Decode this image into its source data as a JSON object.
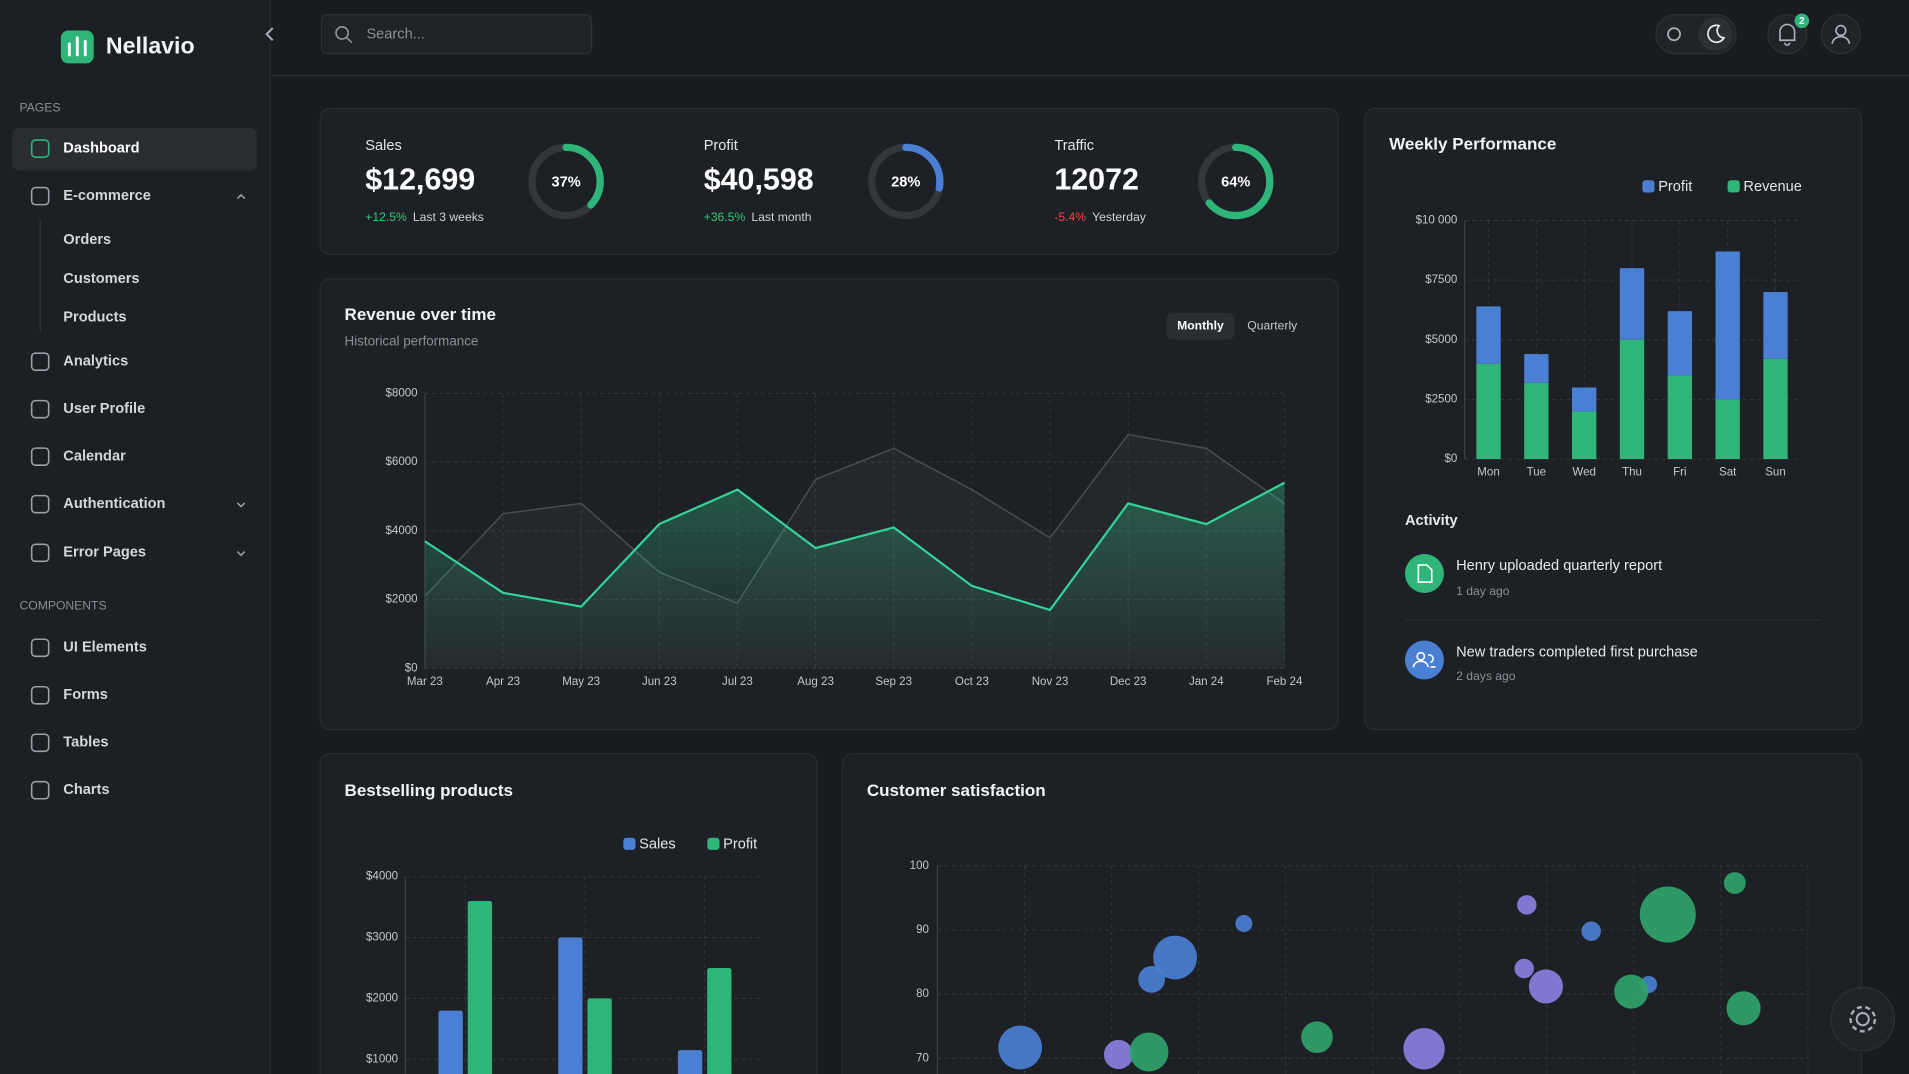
{
  "sidebar": {
    "brand": "Nellavio",
    "sections": [
      {
        "title": "PAGES",
        "items": [
          "Dashboard",
          "E-commerce",
          "Orders",
          "Customers",
          "Products",
          "Analytics",
          "User Profile",
          "Calendar",
          "Authentication",
          "Error Pages"
        ]
      },
      {
        "title": "COMPONENTS",
        "items": [
          "UI Elements",
          "Forms",
          "Tables",
          "Charts"
        ]
      }
    ]
  },
  "topbar": {
    "search_placeholder": "Search...",
    "notification_count": 2
  },
  "kpis": [
    {
      "label": "Sales",
      "value": "$12,699",
      "percent": 37,
      "percent_label": "37%",
      "color": "#2fb579",
      "change": "+12.5%",
      "change_color": "#34c77b",
      "period": "Last 3 weeks"
    },
    {
      "label": "Profit",
      "value": "$40,598",
      "percent": 28,
      "percent_label": "28%",
      "color": "#4a7fd4",
      "change": "+36.5%",
      "change_color": "#34c77b",
      "period": "Last month"
    },
    {
      "label": "Traffic",
      "value": "12072",
      "percent": 64,
      "percent_label": "64%",
      "color": "#2fb579",
      "change": "-5.4%",
      "change_color": "#f04848",
      "period": "Yesterday"
    }
  ],
  "chart_data": [
    {
      "type": "line",
      "title": "Revenue over time",
      "subtitle": "Historical performance",
      "tabs": [
        "Monthly",
        "Quarterly"
      ],
      "categories": [
        "Mar 23",
        "Apr 23",
        "May 23",
        "Jun 23",
        "Jul 23",
        "Aug 23",
        "Sep 23",
        "Oct 23",
        "Nov 23",
        "Dec 23",
        "Jan 24",
        "Feb 24"
      ],
      "series": [
        {
          "color": "#34d399",
          "values": [
            3700,
            2200,
            1800,
            4200,
            5200,
            3500,
            4100,
            2400,
            1700,
            4800,
            4200,
            5400
          ]
        },
        {
          "color": "#4a4e54",
          "values": [
            2100,
            4500,
            4800,
            2800,
            1900,
            5500,
            6400,
            5200,
            3800,
            6800,
            6400,
            4800
          ]
        }
      ],
      "ylim": [
        0,
        8000
      ],
      "yticks": [
        {
          "value": 0,
          "label": "$0"
        },
        {
          "value": 2000,
          "label": "$2000"
        },
        {
          "value": 4000,
          "label": "$4000"
        },
        {
          "value": 6000,
          "label": "$6000"
        },
        {
          "value": 8000,
          "label": "$8000"
        }
      ],
      "grid": true
    },
    {
      "type": "bar",
      "stacked": true,
      "title": "Weekly Performance",
      "categories": [
        "Mon",
        "Tue",
        "Wed",
        "Thu",
        "Fri",
        "Sat",
        "Sun"
      ],
      "series": [
        {
          "name": "Profit",
          "color": "#4a7fd4",
          "values": [
            2400,
            1200,
            1000,
            3000,
            2700,
            6200,
            2800
          ]
        },
        {
          "name": "Revenue",
          "color": "#2fb579",
          "values": [
            4000,
            3200,
            2000,
            5000,
            3500,
            2500,
            4200
          ]
        }
      ],
      "ylim": [
        0,
        10000
      ],
      "yticks": [
        {
          "value": 0,
          "label": "$0"
        },
        {
          "value": 2500,
          "label": "$2500"
        },
        {
          "value": 5000,
          "label": "$5000"
        },
        {
          "value": 7500,
          "label": "$7500"
        },
        {
          "value": 10000,
          "label": "$10 000"
        }
      ],
      "grid": true
    },
    {
      "type": "bar",
      "stacked": false,
      "title": "Bestselling products",
      "categories": [
        null,
        null,
        null
      ],
      "series": [
        {
          "name": "Sales",
          "color": "#4a7fd4",
          "values": [
            1800,
            3000,
            1150
          ]
        },
        {
          "name": "Profit",
          "color": "#2fb579",
          "values": [
            3600,
            2000,
            2500
          ]
        }
      ],
      "ylim": [
        0,
        4000
      ],
      "yticks": [
        {
          "value": 1000,
          "label": "$1000"
        },
        {
          "value": 2000,
          "label": "$2000"
        },
        {
          "value": 3000,
          "label": "$3000"
        },
        {
          "value": 4000,
          "label": "$4000"
        }
      ],
      "grid": true
    },
    {
      "type": "scatter",
      "title": "Customer satisfaction",
      "xlim": [
        0,
        100
      ],
      "ylim": [
        60,
        100
      ],
      "yticks": [
        70,
        80,
        90,
        100
      ],
      "grid": true,
      "series": [
        {
          "color": "#4a7fd4",
          "x": [
            9.5,
            24.6,
            27.3,
            35.2,
            75.1,
            81.7
          ],
          "values": [
            71.7,
            82.3,
            85.7,
            91,
            89.8,
            81.5
          ],
          "sizes": [
            18,
            11,
            18,
            7,
            8,
            7
          ]
        },
        {
          "color": "#8b7fe0",
          "x": [
            20.8,
            55.9,
            67.7,
            67.4,
            69.9
          ],
          "values": [
            70.6,
            71.5,
            93.9,
            84,
            81.2
          ],
          "sizes": [
            12,
            17,
            8,
            8,
            14
          ]
        },
        {
          "color": "#2fa36b",
          "x": [
            24.3,
            43.6,
            79.7,
            83.9,
            91.6,
            92.6
          ],
          "values": [
            71,
            73.3,
            80.4,
            92.4,
            97.3,
            77.8
          ],
          "sizes": [
            16,
            13,
            14,
            23,
            9,
            14
          ]
        }
      ]
    }
  ],
  "activity": {
    "title": "Activity",
    "items": [
      {
        "text": "Henry uploaded quarterly report",
        "time": "1 day ago"
      },
      {
        "text": "New traders completed first purchase",
        "time": "2 days ago"
      }
    ]
  }
}
